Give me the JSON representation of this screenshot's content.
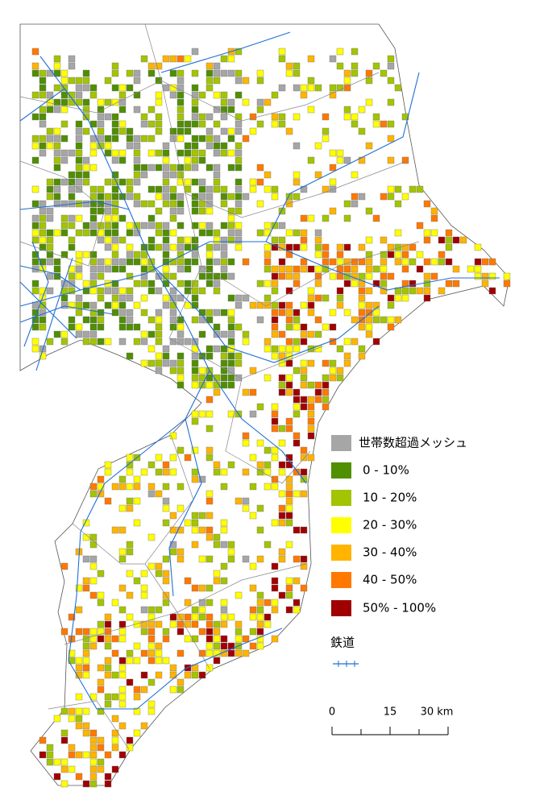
{
  "legend": {
    "items": [
      {
        "label": "世帯数超過メッシュ",
        "color": "#a6a6a6"
      },
      {
        "label": "0 - 10%",
        "color": "#4f8f00"
      },
      {
        "label": "10 - 20%",
        "color": "#a3c400"
      },
      {
        "label": "20 - 30%",
        "color": "#ffff00"
      },
      {
        "label": "30 - 40%",
        "color": "#ffb400"
      },
      {
        "label": "40 - 50%",
        "color": "#ff7800"
      },
      {
        "label": "50% - 100%",
        "color": "#a00000"
      }
    ],
    "railway": {
      "label": "鉄道",
      "color": "#1f6fd6"
    }
  },
  "scale": {
    "labels": [
      "0",
      "15",
      "30 km"
    ]
  }
}
